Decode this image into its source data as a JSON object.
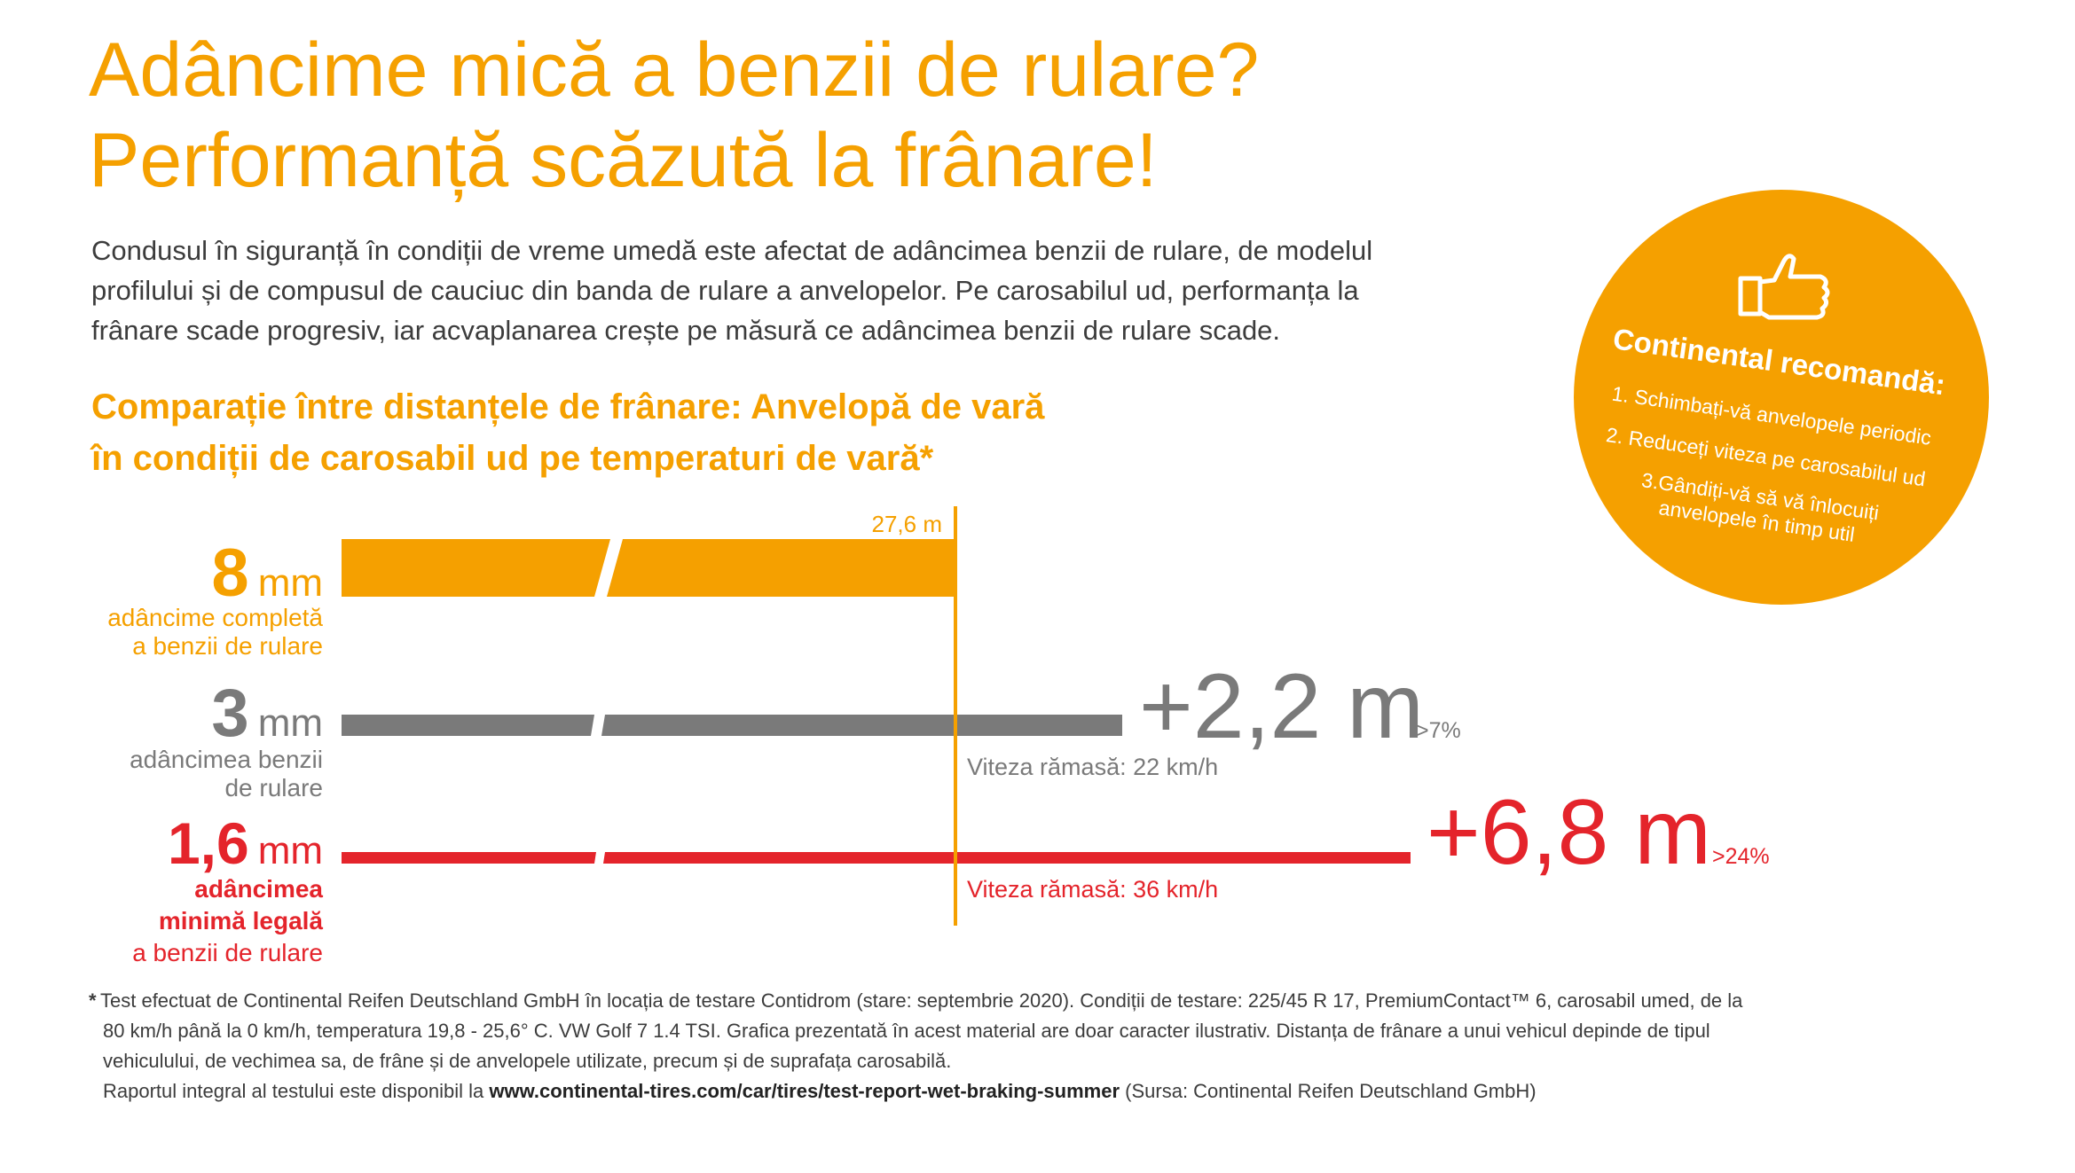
{
  "title": [
    "Adâncime mică a benzii de rulare?",
    "Performanță scăzută la frânare!"
  ],
  "intro": [
    "Condusul în siguranță în condiții de vreme umedă este afectat de adâncimea benzii de rulare, de modelul",
    "profilului și de compusul de cauciuc din banda de rulare a anvelopelor. Pe carosabilul ud, performanța la",
    "frânare scade progresiv, iar acvaplanarea crește pe măsură ce adâncimea benzii de rulare scade."
  ],
  "chart_title": [
    "Comparație între distanțele de frânare: Anvelopă de vară",
    "în condiții de carosabil ud pe temperaturi de vară*"
  ],
  "recommendation": {
    "heading": "Continental recomandă:",
    "items": [
      [
        "1. Schimbați-vă anvelopele periodic"
      ],
      [
        "2. Reduceți viteza pe carosabilul ud"
      ],
      [
        "3.Gândiți-vă să vă înlocuiți",
        "anvelopele în timp util"
      ]
    ]
  },
  "rows": [
    {
      "depth": "8",
      "unit": "mm",
      "caption": [
        "adâncime completă",
        "a benzii de rulare"
      ],
      "distance": "27,6 m"
    },
    {
      "depth": "3",
      "unit": "mm",
      "caption": [
        "adâncimea benzii",
        "de rulare"
      ],
      "extra": "+2,2 m",
      "percent": ">7%",
      "speed": "Viteza rămasă: 22 km/h"
    },
    {
      "depth": "1,6",
      "unit": "mm",
      "caption": [
        "adâncimea",
        "minimă legală",
        "a benzii de rulare"
      ],
      "extra": "+6,8 m",
      "percent": ">24%",
      "speed": "Viteza rămasă: 36 km/h"
    }
  ],
  "footnote": {
    "marker": "*",
    "lines": [
      "Test efectuat de Continental Reifen Deutschland GmbH în locația de testare Contidrom (stare: septembrie 2020). Condiții de testare: 225/45 R 17, PremiumContact™ 6, carosabil umed, de la",
      "80 km/h până la 0 km/h, temperatura 19,8 - 25,6° C. VW Golf 7 1.4 TSI. Grafica prezentată în acest material are doar caracter ilustrativ. Distanța de frânare a unui vehicul depinde de tipul",
      "vehiculului, de vechimea sa, de frâne și de anvelopele utilizate, precum și de suprafața carosabilă."
    ],
    "link_prefix": "Raportul integral al testului este disponibil la ",
    "link": "www.continental-tires.com/car/tires/test-report-wet-braking-summer",
    "link_suffix": " (Sursa: Continental Reifen Deutschland GmbH)"
  }
}
